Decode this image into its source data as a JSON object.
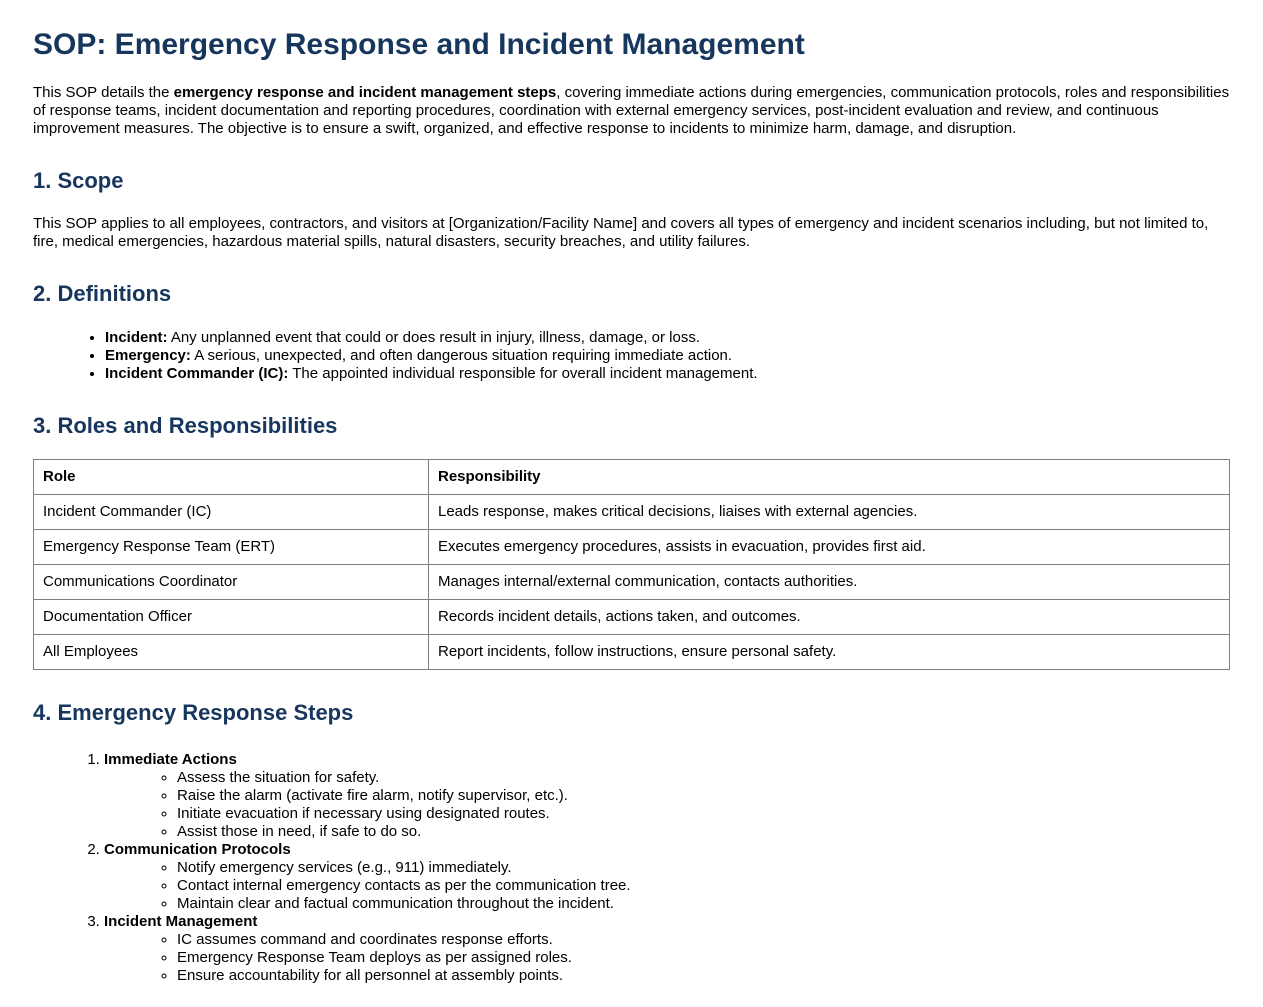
{
  "page": {
    "title": "SOP: Emergency Response and Incident Management",
    "intro": {
      "text_before_bold": "This SOP details the ",
      "bold_text": "emergency response and incident management steps",
      "text_after_bold": ", covering immediate actions during emergencies, communication protocols, roles and responsibilities of response teams, incident documentation and reporting procedures, coordination with external emergency services, post-incident evaluation and review, and continuous improvement measures. The objective is to ensure a swift, organized, and effective response to incidents to minimize harm, damage, and disruption."
    },
    "scope": {
      "heading": "1. Scope",
      "body": "This SOP applies to all employees, contractors, and visitors at [Organization/Facility Name] and covers all types of emergency and incident scenarios including, but not limited to, fire, medical emergencies, hazardous material spills, natural disasters, security breaches, and utility failures."
    },
    "definitions": {
      "heading": "2. Definitions",
      "items": [
        {
          "term": "Incident:",
          "text": " Any unplanned event that could or does result in injury, illness, damage, or loss."
        },
        {
          "term": "Emergency:",
          "text": " A serious, unexpected, and often dangerous situation requiring immediate action."
        },
        {
          "term": "Incident Commander (IC):",
          "text": " The appointed individual responsible for overall incident management."
        }
      ]
    },
    "roles": {
      "heading": "3. Roles and Responsibilities",
      "table": {
        "headers": [
          "Role",
          "Responsibility"
        ],
        "rows": [
          [
            "Incident Commander (IC)",
            "Leads response, makes critical decisions, liaises with external agencies."
          ],
          [
            "Emergency Response Team (ERT)",
            "Executes emergency procedures, assists in evacuation, provides first aid."
          ],
          [
            "Communications Coordinator",
            "Manages internal/external communication, contacts authorities."
          ],
          [
            "Documentation Officer",
            "Records incident details, actions taken, and outcomes."
          ],
          [
            "All Employees",
            "Report incidents, follow instructions, ensure personal safety."
          ]
        ]
      }
    },
    "steps": {
      "heading": "4. Emergency Response Steps",
      "items": [
        {
          "title": "Immediate Actions",
          "substeps": [
            "Assess the situation for safety.",
            "Raise the alarm (activate fire alarm, notify supervisor, etc.).",
            "Initiate evacuation if necessary using designated routes.",
            "Assist those in need, if safe to do so."
          ]
        },
        {
          "title": "Communication Protocols",
          "substeps": [
            "Notify emergency services (e.g., 911) immediately.",
            "Contact internal emergency contacts as per the communication tree.",
            "Maintain clear and factual communication throughout the incident."
          ]
        },
        {
          "title": "Incident Management",
          "substeps": [
            "IC assumes command and coordinates response efforts.",
            "Emergency Response Team deploys as per assigned roles.",
            "Ensure accountability for all personnel at assembly points."
          ]
        }
      ]
    },
    "colors": {
      "heading": "#17365d",
      "body_text": "#000000",
      "table_border": "#7f7f7f",
      "background": "#ffffff"
    }
  }
}
